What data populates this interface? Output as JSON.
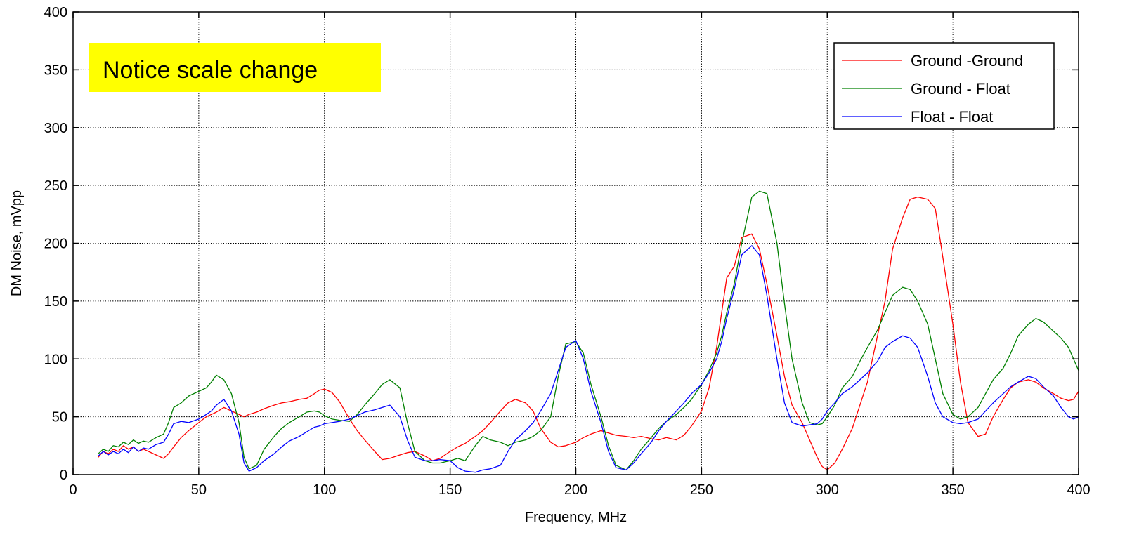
{
  "chart_data": {
    "type": "line",
    "title": "",
    "xlabel": "Frequency, MHz",
    "ylabel": "DM Noise, mVpp",
    "xlim": [
      0,
      400
    ],
    "ylim": [
      0,
      400
    ],
    "xticks": [
      0,
      50,
      100,
      150,
      200,
      250,
      300,
      350,
      400
    ],
    "yticks": [
      0,
      50,
      100,
      150,
      200,
      250,
      300,
      350,
      400
    ],
    "grid": true,
    "legend_position": "top-right",
    "annotation": {
      "text": "Notice scale change",
      "background": "#ffff00"
    },
    "series": [
      {
        "name": "Ground -Ground",
        "color": "#ff0000",
        "x": [
          10,
          12,
          14,
          16,
          18,
          20,
          22,
          24,
          26,
          28,
          30,
          33,
          36,
          38,
          40,
          43,
          46,
          50,
          53,
          55,
          57,
          60,
          63,
          66,
          68,
          70,
          73,
          76,
          80,
          83,
          86,
          90,
          93,
          96,
          98,
          100,
          103,
          106,
          110,
          113,
          116,
          120,
          123,
          126,
          130,
          133,
          136,
          140,
          143,
          146,
          150,
          153,
          156,
          160,
          163,
          166,
          170,
          173,
          176,
          180,
          183,
          186,
          190,
          193,
          196,
          200,
          203,
          206,
          210,
          213,
          216,
          220,
          223,
          226,
          230,
          233,
          236,
          240,
          243,
          246,
          250,
          253,
          256,
          258,
          260,
          263,
          266,
          270,
          273,
          276,
          280,
          283,
          286,
          290,
          293,
          296,
          298,
          300,
          303,
          306,
          310,
          313,
          316,
          320,
          323,
          326,
          330,
          333,
          336,
          340,
          343,
          346,
          350,
          353,
          356,
          360,
          363,
          366,
          370,
          373,
          376,
          380,
          383,
          386,
          390,
          393,
          396,
          398,
          400
        ],
        "y": [
          15,
          20,
          18,
          22,
          20,
          25,
          22,
          24,
          20,
          22,
          20,
          17,
          14,
          18,
          24,
          32,
          38,
          45,
          50,
          52,
          54,
          58,
          55,
          52,
          50,
          52,
          54,
          57,
          60,
          62,
          63,
          65,
          66,
          70,
          73,
          74,
          71,
          63,
          48,
          38,
          30,
          20,
          13,
          14,
          17,
          19,
          20,
          16,
          12,
          14,
          20,
          24,
          27,
          33,
          38,
          45,
          55,
          62,
          65,
          62,
          55,
          40,
          28,
          24,
          25,
          28,
          32,
          35,
          38,
          36,
          34,
          33,
          32,
          33,
          31,
          30,
          32,
          30,
          34,
          42,
          55,
          75,
          110,
          140,
          170,
          180,
          205,
          208,
          195,
          165,
          120,
          85,
          60,
          45,
          30,
          15,
          7,
          4,
          10,
          22,
          40,
          60,
          80,
          120,
          150,
          195,
          222,
          238,
          240,
          238,
          230,
          188,
          130,
          80,
          45,
          33,
          35,
          50,
          65,
          75,
          80,
          82,
          80,
          75,
          70,
          66,
          64,
          65,
          72
        ]
      },
      {
        "name": "Ground - Float",
        "color": "#008000",
        "x": [
          10,
          12,
          14,
          16,
          18,
          20,
          22,
          24,
          26,
          28,
          30,
          33,
          36,
          38,
          40,
          43,
          46,
          50,
          53,
          55,
          57,
          60,
          63,
          66,
          68,
          70,
          73,
          76,
          80,
          83,
          86,
          90,
          93,
          96,
          98,
          100,
          103,
          106,
          110,
          113,
          116,
          120,
          123,
          126,
          130,
          133,
          136,
          140,
          143,
          146,
          150,
          153,
          156,
          160,
          163,
          166,
          170,
          173,
          176,
          180,
          183,
          186,
          190,
          193,
          196,
          200,
          203,
          206,
          210,
          213,
          216,
          220,
          223,
          226,
          230,
          233,
          236,
          240,
          243,
          246,
          250,
          253,
          256,
          258,
          260,
          263,
          266,
          270,
          273,
          276,
          280,
          283,
          286,
          290,
          293,
          296,
          298,
          300,
          303,
          306,
          310,
          313,
          316,
          320,
          323,
          326,
          330,
          333,
          336,
          340,
          343,
          346,
          350,
          353,
          356,
          360,
          363,
          366,
          370,
          373,
          376,
          380,
          383,
          386,
          390,
          393,
          396,
          398,
          400
        ],
        "y": [
          18,
          22,
          20,
          25,
          24,
          28,
          26,
          30,
          27,
          29,
          28,
          32,
          35,
          45,
          58,
          62,
          68,
          72,
          75,
          80,
          86,
          82,
          70,
          45,
          15,
          5,
          8,
          22,
          33,
          40,
          45,
          50,
          54,
          55,
          54,
          51,
          48,
          47,
          46,
          52,
          60,
          70,
          78,
          82,
          75,
          45,
          20,
          12,
          10,
          10,
          12,
          14,
          12,
          25,
          33,
          30,
          28,
          25,
          28,
          30,
          33,
          38,
          50,
          85,
          113,
          115,
          105,
          78,
          50,
          25,
          8,
          4,
          12,
          22,
          32,
          40,
          46,
          52,
          58,
          65,
          78,
          90,
          105,
          120,
          140,
          165,
          200,
          240,
          245,
          243,
          200,
          148,
          100,
          62,
          45,
          43,
          44,
          50,
          60,
          75,
          85,
          98,
          110,
          125,
          140,
          155,
          162,
          160,
          150,
          130,
          100,
          70,
          52,
          48,
          50,
          58,
          70,
          82,
          92,
          105,
          120,
          130,
          135,
          132,
          124,
          118,
          110,
          100,
          90
        ]
      },
      {
        "name": "Float - Float",
        "color": "#0000ff",
        "x": [
          10,
          12,
          14,
          16,
          18,
          20,
          22,
          24,
          26,
          28,
          30,
          33,
          36,
          38,
          40,
          43,
          46,
          50,
          53,
          55,
          57,
          60,
          63,
          66,
          68,
          70,
          73,
          76,
          80,
          83,
          86,
          90,
          93,
          96,
          98,
          100,
          103,
          106,
          110,
          113,
          116,
          120,
          123,
          126,
          130,
          133,
          136,
          140,
          143,
          146,
          150,
          153,
          156,
          160,
          163,
          166,
          170,
          173,
          176,
          180,
          183,
          186,
          190,
          193,
          196,
          200,
          203,
          206,
          210,
          213,
          216,
          220,
          223,
          226,
          230,
          233,
          236,
          240,
          243,
          246,
          250,
          253,
          256,
          258,
          260,
          263,
          266,
          270,
          273,
          276,
          280,
          283,
          286,
          290,
          293,
          296,
          298,
          300,
          303,
          306,
          310,
          313,
          316,
          320,
          323,
          326,
          330,
          333,
          336,
          340,
          343,
          346,
          350,
          353,
          356,
          360,
          363,
          366,
          370,
          373,
          376,
          380,
          383,
          386,
          390,
          393,
          396,
          398,
          400
        ],
        "y": [
          16,
          20,
          17,
          20,
          18,
          22,
          19,
          24,
          20,
          23,
          22,
          26,
          28,
          35,
          44,
          46,
          45,
          48,
          52,
          55,
          60,
          65,
          55,
          35,
          10,
          3,
          6,
          12,
          18,
          24,
          29,
          33,
          37,
          41,
          42,
          44,
          45,
          46,
          48,
          51,
          54,
          56,
          58,
          60,
          50,
          30,
          15,
          12,
          12,
          13,
          12,
          6,
          3,
          2,
          4,
          5,
          8,
          20,
          30,
          38,
          45,
          55,
          70,
          90,
          110,
          116,
          100,
          72,
          45,
          20,
          6,
          4,
          10,
          18,
          28,
          38,
          46,
          55,
          62,
          70,
          78,
          88,
          100,
          115,
          135,
          160,
          190,
          198,
          190,
          155,
          100,
          62,
          45,
          42,
          43,
          44,
          48,
          55,
          62,
          70,
          76,
          82,
          88,
          98,
          110,
          115,
          120,
          118,
          110,
          85,
          62,
          50,
          45,
          44,
          45,
          48,
          55,
          62,
          70,
          76,
          80,
          85,
          83,
          76,
          68,
          58,
          50,
          48,
          50
        ]
      }
    ]
  }
}
